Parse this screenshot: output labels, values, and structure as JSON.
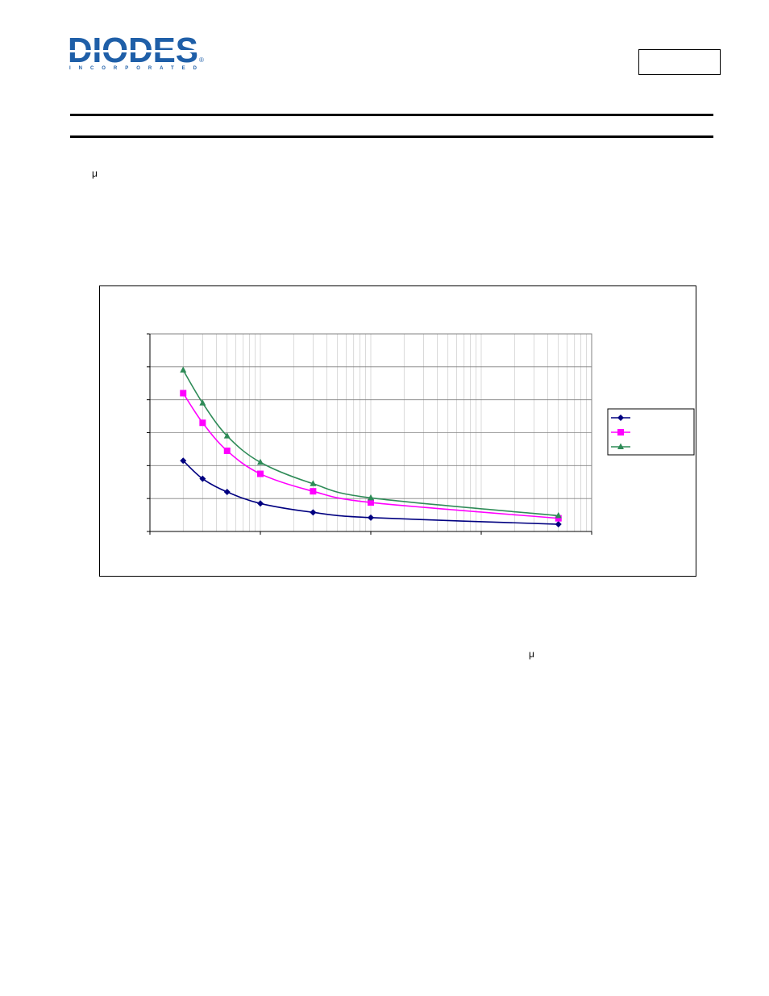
{
  "header": {
    "logo": {
      "wordmark": "DIODES",
      "tagline": "INCORPORATED",
      "registered": "®",
      "brand_color": "#1f5fa8"
    },
    "part_number": ""
  },
  "body_text": {
    "mu_symbol_1": "μ",
    "mu_symbol_2": "μ"
  },
  "chart_data": {
    "type": "line",
    "title": "",
    "xlabel": "",
    "ylabel": "",
    "x_scale": "log",
    "xlim": [
      1,
      10000
    ],
    "ylim": [
      0,
      6
    ],
    "grid": true,
    "legend_position": "right",
    "colors": {
      "series_1": "#000080",
      "series_2": "#ff00ff",
      "series_3": "#2e8b57",
      "grid": "#c0c0c0",
      "plot_border": "#808080"
    },
    "x": [
      2,
      3,
      5,
      10,
      30,
      100,
      5000
    ],
    "series": [
      {
        "marker": "diamond",
        "values": [
          2.15,
          1.6,
          1.2,
          0.85,
          0.58,
          0.42,
          0.22
        ]
      },
      {
        "marker": "square",
        "values": [
          4.2,
          3.3,
          2.45,
          1.75,
          1.22,
          0.88,
          0.4
        ]
      },
      {
        "marker": "triangle",
        "values": [
          4.9,
          3.9,
          2.9,
          2.1,
          1.45,
          1.02,
          0.48
        ]
      }
    ]
  }
}
